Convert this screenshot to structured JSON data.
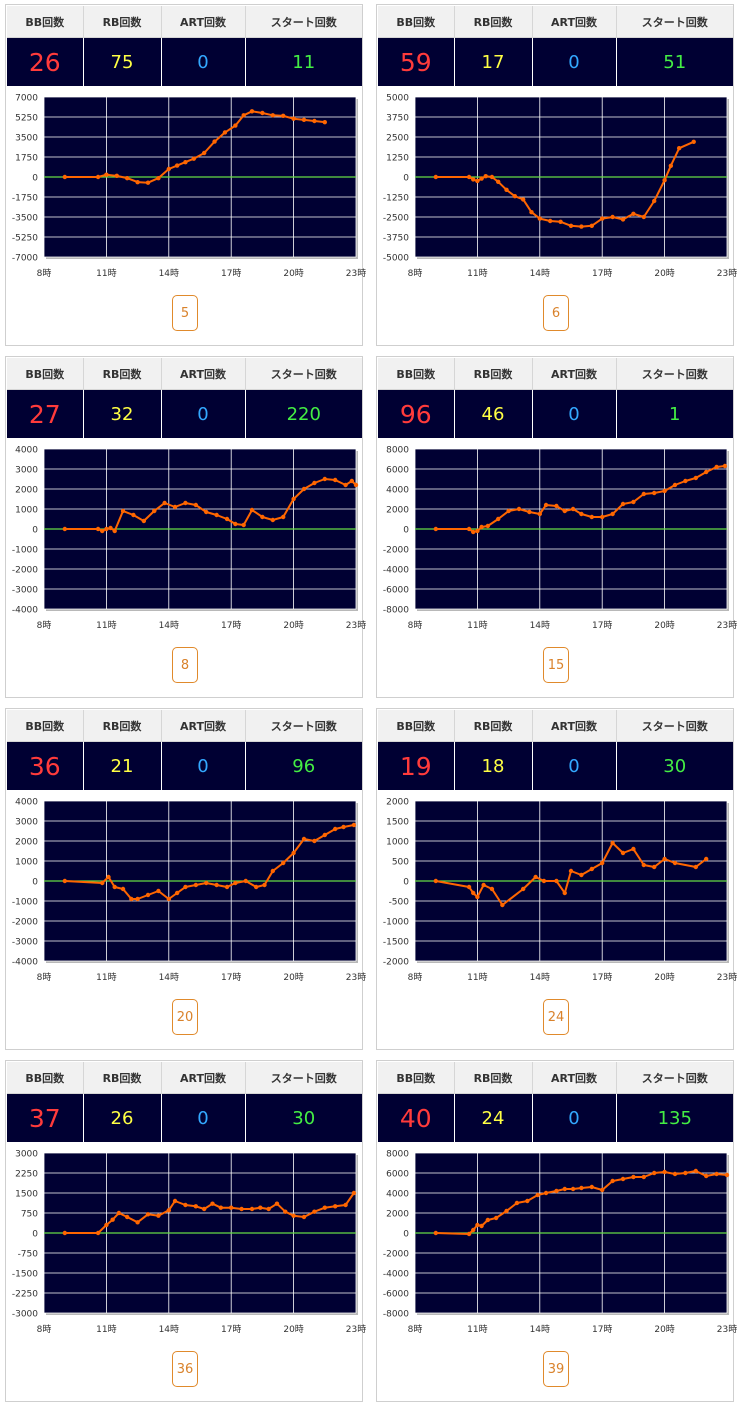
{
  "headers": {
    "bb": "BB回数",
    "rb": "RB回数",
    "art": "ART回数",
    "start": "スタート回数"
  },
  "colors": {
    "plot_bg": "#000033",
    "line": "#ff6600",
    "zero_line": "#66dd44",
    "bb": "#ff3b3b",
    "rb": "#ffff44",
    "art": "#33a8ff",
    "start": "#44ee44",
    "badge": "#d9822b"
  },
  "cards": [
    {
      "bb": "26",
      "rb": "75",
      "art": "0",
      "start": "11",
      "badge": "5"
    },
    {
      "bb": "59",
      "rb": "17",
      "art": "0",
      "start": "51",
      "badge": "6"
    },
    {
      "bb": "27",
      "rb": "32",
      "art": "0",
      "start": "220",
      "badge": "8"
    },
    {
      "bb": "96",
      "rb": "46",
      "art": "0",
      "start": "1",
      "badge": "15"
    },
    {
      "bb": "36",
      "rb": "21",
      "art": "0",
      "start": "96",
      "badge": "20"
    },
    {
      "bb": "19",
      "rb": "18",
      "art": "0",
      "start": "30",
      "badge": "24"
    },
    {
      "bb": "37",
      "rb": "26",
      "art": "0",
      "start": "30",
      "badge": "36"
    },
    {
      "bb": "40",
      "rb": "24",
      "art": "0",
      "start": "135",
      "badge": "39"
    }
  ],
  "chart_data": [
    {
      "type": "line",
      "x_ticks": [
        "8時",
        "11時",
        "14時",
        "17時",
        "20時",
        "23時"
      ],
      "xlim": [
        8,
        23
      ],
      "ylim": [
        -7000,
        7000
      ],
      "y_ticks": [
        7000,
        5250,
        3500,
        1750,
        0,
        -1750,
        -3500,
        -5250,
        -7000
      ],
      "series": [
        {
          "x": [
            9,
            10.6,
            11,
            11.5,
            12,
            12.5,
            13,
            13.5,
            14,
            14.4,
            14.8,
            15.2,
            15.7,
            16.2,
            16.7,
            17.2,
            17.6,
            18,
            18.5,
            19,
            19.5,
            20,
            20.5,
            21,
            21.5
          ],
          "y": [
            0,
            0,
            200,
            100,
            -100,
            -450,
            -500,
            -100,
            700,
            1000,
            1300,
            1600,
            2100,
            3100,
            3900,
            4500,
            5400,
            5750,
            5600,
            5400,
            5350,
            5100,
            5000,
            4900,
            4800
          ]
        }
      ]
    },
    {
      "type": "line",
      "x_ticks": [
        "8時",
        "11時",
        "14時",
        "17時",
        "20時",
        "23時"
      ],
      "xlim": [
        8,
        23
      ],
      "ylim": [
        -5000,
        5000
      ],
      "y_ticks": [
        5000,
        3750,
        2500,
        1250,
        0,
        -1250,
        -2500,
        -3750,
        -5000
      ],
      "series": [
        {
          "x": [
            9,
            10.6,
            10.8,
            11,
            11.2,
            11.4,
            11.7,
            12,
            12.4,
            12.8,
            13.2,
            13.6,
            14,
            14.5,
            15,
            15.5,
            16,
            16.5,
            17,
            17.5,
            18,
            18.5,
            19,
            19.5,
            20,
            20.3,
            20.7,
            21.4
          ],
          "y": [
            0,
            0,
            -150,
            -250,
            -100,
            50,
            0,
            -300,
            -800,
            -1200,
            -1400,
            -2200,
            -2600,
            -2750,
            -2800,
            -3050,
            -3100,
            -3050,
            -2600,
            -2500,
            -2650,
            -2300,
            -2500,
            -1500,
            -200,
            700,
            1800,
            2200
          ]
        }
      ]
    },
    {
      "type": "line",
      "x_ticks": [
        "8時",
        "11時",
        "14時",
        "17時",
        "20時",
        "23時"
      ],
      "xlim": [
        8,
        23
      ],
      "ylim": [
        -4000,
        4000
      ],
      "y_ticks": [
        4000,
        3000,
        2000,
        1000,
        0,
        -1000,
        -2000,
        -3000,
        -4000
      ],
      "series": [
        {
          "x": [
            9,
            10.6,
            10.8,
            11,
            11.2,
            11.4,
            11.8,
            12.3,
            12.8,
            13.3,
            13.8,
            14.3,
            14.8,
            15.3,
            15.8,
            16.3,
            16.8,
            17.2,
            17.6,
            18,
            18.5,
            19,
            19.5,
            20,
            20.5,
            21,
            21.5,
            22,
            22.5,
            22.8,
            23
          ],
          "y": [
            0,
            0,
            -100,
            0,
            50,
            -100,
            900,
            700,
            400,
            900,
            1300,
            1100,
            1300,
            1200,
            850,
            700,
            500,
            250,
            200,
            950,
            600,
            450,
            600,
            1500,
            2000,
            2300,
            2500,
            2450,
            2200,
            2400,
            2200
          ]
        }
      ]
    },
    {
      "type": "line",
      "x_ticks": [
        "8時",
        "11時",
        "14時",
        "17時",
        "20時",
        "23時"
      ],
      "xlim": [
        8,
        23
      ],
      "ylim": [
        -8000,
        8000
      ],
      "y_ticks": [
        8000,
        6000,
        4000,
        2000,
        0,
        -2000,
        -4000,
        -6000,
        -8000
      ],
      "series": [
        {
          "x": [
            9,
            10.6,
            10.8,
            11,
            11.2,
            11.5,
            12,
            12.5,
            13,
            13.5,
            14,
            14.3,
            14.8,
            15.2,
            15.6,
            16,
            16.5,
            17,
            17.5,
            18,
            18.5,
            19,
            19.5,
            20,
            20.5,
            21,
            21.5,
            22,
            22.5,
            22.9
          ],
          "y": [
            0,
            0,
            -300,
            -200,
            200,
            300,
            1000,
            1800,
            2000,
            1700,
            1500,
            2400,
            2300,
            1800,
            2000,
            1500,
            1200,
            1200,
            1500,
            2500,
            2700,
            3500,
            3600,
            3800,
            4400,
            4800,
            5100,
            5700,
            6200,
            6300
          ]
        }
      ]
    },
    {
      "type": "line",
      "x_ticks": [
        "8時",
        "11時",
        "14時",
        "17時",
        "20時",
        "23時"
      ],
      "xlim": [
        8,
        23
      ],
      "ylim": [
        -4000,
        4000
      ],
      "y_ticks": [
        4000,
        3000,
        2000,
        1000,
        0,
        -1000,
        -2000,
        -3000,
        -4000
      ],
      "series": [
        {
          "x": [
            9,
            10.8,
            11.1,
            11.4,
            11.8,
            12.2,
            12.5,
            13,
            13.5,
            14,
            14.4,
            14.8,
            15.3,
            15.8,
            16.3,
            16.8,
            17.2,
            17.7,
            18.2,
            18.6,
            19,
            19.5,
            20,
            20.5,
            21,
            21.5,
            22,
            22.4,
            22.9
          ],
          "y": [
            0,
            -100,
            200,
            -300,
            -400,
            -900,
            -900,
            -700,
            -500,
            -900,
            -600,
            -300,
            -200,
            -100,
            -200,
            -300,
            -100,
            0,
            -300,
            -200,
            500,
            900,
            1400,
            2100,
            2000,
            2300,
            2600,
            2700,
            2800
          ]
        }
      ]
    },
    {
      "type": "line",
      "x_ticks": [
        "8時",
        "11時",
        "14時",
        "17時",
        "20時",
        "23時"
      ],
      "xlim": [
        8,
        23
      ],
      "ylim": [
        -2000,
        2000
      ],
      "y_ticks": [
        2000,
        1500,
        1000,
        500,
        0,
        -500,
        -1000,
        -1500,
        -2000
      ],
      "series": [
        {
          "x": [
            9,
            10.6,
            10.8,
            11,
            11.3,
            11.7,
            12.2,
            13.2,
            13.8,
            14.2,
            14.8,
            15.2,
            15.5,
            16,
            16.5,
            17,
            17.5,
            18,
            18.5,
            19,
            19.5,
            20,
            20.5,
            21.5,
            22
          ],
          "y": [
            0,
            -150,
            -300,
            -400,
            -100,
            -200,
            -600,
            -200,
            100,
            0,
            0,
            -300,
            250,
            150,
            300,
            450,
            950,
            700,
            800,
            400,
            350,
            550,
            450,
            350,
            550
          ]
        }
      ]
    },
    {
      "type": "line",
      "x_ticks": [
        "8時",
        "11時",
        "14時",
        "17時",
        "20時",
        "23時"
      ],
      "xlim": [
        8,
        23
      ],
      "ylim": [
        -3000,
        3000
      ],
      "y_ticks": [
        3000,
        2250,
        1500,
        750,
        0,
        -750,
        -1500,
        -2250,
        -3000
      ],
      "series": [
        {
          "x": [
            9,
            10.6,
            11,
            11.3,
            11.6,
            12,
            12.5,
            13,
            13.5,
            14,
            14.3,
            14.8,
            15.3,
            15.7,
            16.1,
            16.5,
            17,
            17.5,
            18,
            18.4,
            18.8,
            19.2,
            19.6,
            20,
            20.5,
            21,
            21.5,
            22,
            22.5,
            22.9
          ],
          "y": [
            0,
            0,
            300,
            500,
            750,
            600,
            400,
            700,
            650,
            850,
            1200,
            1050,
            1000,
            900,
            1100,
            950,
            950,
            900,
            900,
            950,
            900,
            1100,
            800,
            650,
            600,
            800,
            950,
            1000,
            1050,
            1500
          ]
        }
      ]
    },
    {
      "type": "line",
      "x_ticks": [
        "8時",
        "11時",
        "14時",
        "17時",
        "20時",
        "23時"
      ],
      "xlim": [
        8,
        23
      ],
      "ylim": [
        -8000,
        8000
      ],
      "y_ticks": [
        8000,
        6000,
        4000,
        2000,
        0,
        -2000,
        -4000,
        -6000,
        -8000
      ],
      "series": [
        {
          "x": [
            9,
            10.6,
            10.8,
            11,
            11.2,
            11.5,
            11.9,
            12.4,
            12.9,
            13.4,
            13.9,
            14.3,
            14.8,
            15.2,
            15.6,
            16,
            16.5,
            17,
            17.5,
            18,
            18.5,
            19,
            19.5,
            20,
            20.5,
            21,
            21.5,
            22,
            22.5,
            23
          ],
          "y": [
            0,
            -100,
            300,
            800,
            700,
            1300,
            1500,
            2200,
            3000,
            3200,
            3800,
            4000,
            4200,
            4400,
            4400,
            4500,
            4600,
            4300,
            5200,
            5400,
            5600,
            5600,
            6000,
            6100,
            5900,
            6000,
            6200,
            5700,
            5900,
            5800
          ]
        }
      ]
    }
  ]
}
